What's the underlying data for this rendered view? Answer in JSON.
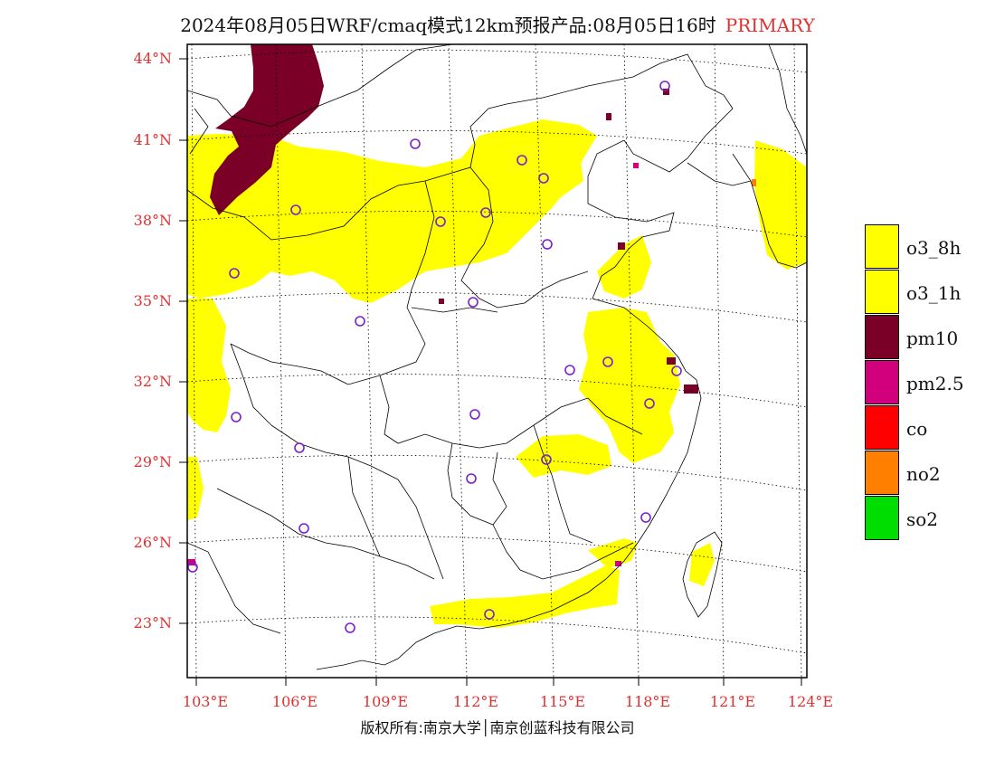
{
  "title": {
    "main": "2024年08月05日WRF/cmaq模式12km预报产品:08月05日16时",
    "tag": "PRIMARY"
  },
  "axes": {
    "lat_labels": [
      "44°N",
      "41°N",
      "38°N",
      "35°N",
      "32°N",
      "29°N",
      "26°N",
      "23°N"
    ],
    "lon_labels": [
      "103°E",
      "106°E",
      "109°E",
      "112°E",
      "115°E",
      "118°E",
      "121°E",
      "124°E"
    ]
  },
  "legend": [
    {
      "label": "o3_8h",
      "color": "#ffff00"
    },
    {
      "label": "o3_1h",
      "color": "#ffff00"
    },
    {
      "label": "pm10",
      "color": "#7a0028"
    },
    {
      "label": "pm2.5",
      "color": "#d2007c"
    },
    {
      "label": "co",
      "color": "#ff0000"
    },
    {
      "label": "no2",
      "color": "#ff8000"
    },
    {
      "label": "so2",
      "color": "#00dd00"
    }
  ],
  "colors": {
    "o3": "#ffff00",
    "pm10": "#7a0028",
    "pm25": "#d2007c",
    "no2": "#ff8000",
    "station_marker": "#7a20d0",
    "label_red": "#e03030"
  },
  "map": {
    "type": "pollutant-forecast-map",
    "primary_pollutant_regions": [
      "o3_8h",
      "pm10",
      "pm2.5",
      "no2"
    ],
    "station_marker_icon": "circle-icon"
  },
  "copyright": "版权所有:南京大学│南京创蓝科技有限公司"
}
